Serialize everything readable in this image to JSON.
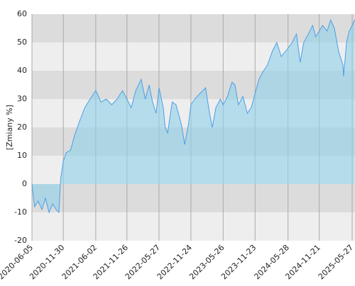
{
  "chart_data": {
    "type": "area",
    "y_label": "[Zmiany %]",
    "x": [
      "2020-06-05",
      "2020-06-20",
      "2020-07-10",
      "2020-08-01",
      "2020-08-20",
      "2020-09-10",
      "2020-10-01",
      "2020-10-20",
      "2020-11-05",
      "2020-11-15",
      "2020-11-30",
      "2020-12-15",
      "2021-01-10",
      "2021-02-01",
      "2021-03-01",
      "2021-04-01",
      "2021-05-01",
      "2021-06-02",
      "2021-07-01",
      "2021-08-01",
      "2021-09-01",
      "2021-10-01",
      "2021-11-01",
      "2021-11-26",
      "2021-12-20",
      "2022-01-15",
      "2022-02-15",
      "2022-03-10",
      "2022-04-01",
      "2022-04-20",
      "2022-05-10",
      "2022-05-27",
      "2022-06-20",
      "2022-07-01",
      "2022-07-15",
      "2022-08-10",
      "2022-09-01",
      "2022-10-01",
      "2022-10-20",
      "2022-11-10",
      "2022-11-24",
      "2022-12-15",
      "2023-01-15",
      "2023-02-15",
      "2023-03-10",
      "2023-03-25",
      "2023-04-15",
      "2023-05-10",
      "2023-05-26",
      "2023-06-20",
      "2023-07-15",
      "2023-08-01",
      "2023-08-20",
      "2023-09-15",
      "2023-10-10",
      "2023-11-01",
      "2023-11-23",
      "2023-12-15",
      "2024-01-10",
      "2024-02-01",
      "2024-03-01",
      "2024-03-25",
      "2024-04-20",
      "2024-05-28",
      "2024-06-20",
      "2024-07-15",
      "2024-08-05",
      "2024-08-25",
      "2024-09-20",
      "2024-10-15",
      "2024-11-01",
      "2024-11-21",
      "2024-12-10",
      "2025-01-05",
      "2025-01-25",
      "2025-02-15",
      "2025-03-10",
      "2025-04-05",
      "2025-04-08",
      "2025-04-25",
      "2025-05-10",
      "2025-05-27",
      "2025-06-10"
    ],
    "values": [
      0,
      -8,
      -6,
      -9,
      -5,
      -10,
      -7,
      -9,
      -10,
      2,
      8,
      11,
      12,
      17,
      22,
      27,
      30,
      33,
      29,
      30,
      28,
      30,
      33,
      30,
      27,
      33,
      37,
      30,
      35,
      29,
      25,
      34,
      27,
      20,
      18,
      29,
      28,
      21,
      14,
      21,
      28,
      30,
      32,
      34,
      25,
      20,
      27,
      30,
      28,
      31,
      36,
      35,
      28,
      31,
      25,
      27,
      32,
      37,
      40,
      42,
      47,
      50,
      45,
      48,
      50,
      53,
      43,
      50,
      53,
      56,
      52,
      54,
      56,
      54,
      58,
      55,
      47,
      42,
      38,
      50,
      54,
      56,
      58
    ],
    "line_color": "#4a9fe8",
    "area_color": "#8fd0ea",
    "xlim": [
      "2020-06-05",
      "2025-06-12"
    ],
    "xticks": [
      "2020-06-05",
      "2020-11-30",
      "2021-06-02",
      "2021-11-26",
      "2022-05-27",
      "2022-11-24",
      "2023-05-26",
      "2023-11-23",
      "2024-05-28",
      "2024-11-21",
      "2025-05-27"
    ],
    "ylim": [
      -20,
      60
    ],
    "yticks": [
      -20,
      -10,
      0,
      10,
      20,
      30,
      40,
      50,
      60
    ],
    "grid": "bands"
  }
}
